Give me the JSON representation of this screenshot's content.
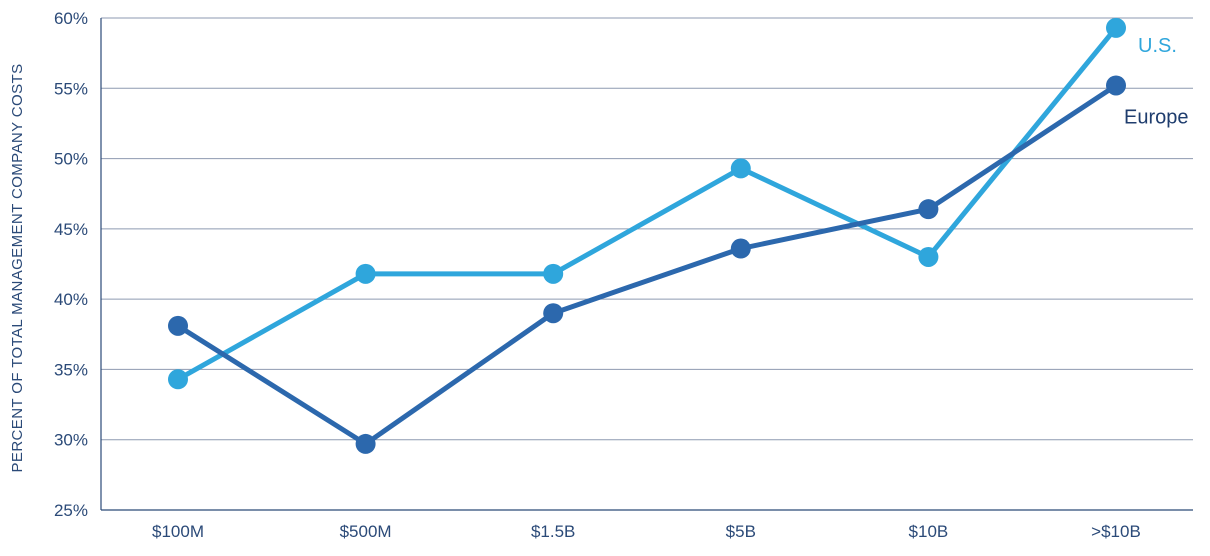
{
  "chart_data": {
    "type": "line",
    "title": "",
    "xlabel": "",
    "ylabel": "PERCENT OF TOTAL MANAGEMENT COMPANY COSTS",
    "categories": [
      "$100M",
      "$500M",
      "$1.5B",
      "$5B",
      "$10B",
      ">$10B"
    ],
    "y_ticks": [
      "25%",
      "30%",
      "35%",
      "40%",
      "45%",
      "50%",
      "55%",
      "60%"
    ],
    "ylim": [
      25,
      60
    ],
    "grid": true,
    "legend": "inline labels at line ends (right)",
    "series": [
      {
        "name": "U.S.",
        "color": "#2fa6dc",
        "values": [
          34.3,
          41.8,
          41.8,
          49.3,
          43.0,
          59.3
        ]
      },
      {
        "name": "Europe",
        "color": "#2c68ad",
        "values": [
          38.1,
          29.7,
          39.0,
          43.6,
          46.4,
          55.2
        ]
      }
    ],
    "axis_color": "#2b4a78",
    "grid_color": "#8e9ab0"
  }
}
